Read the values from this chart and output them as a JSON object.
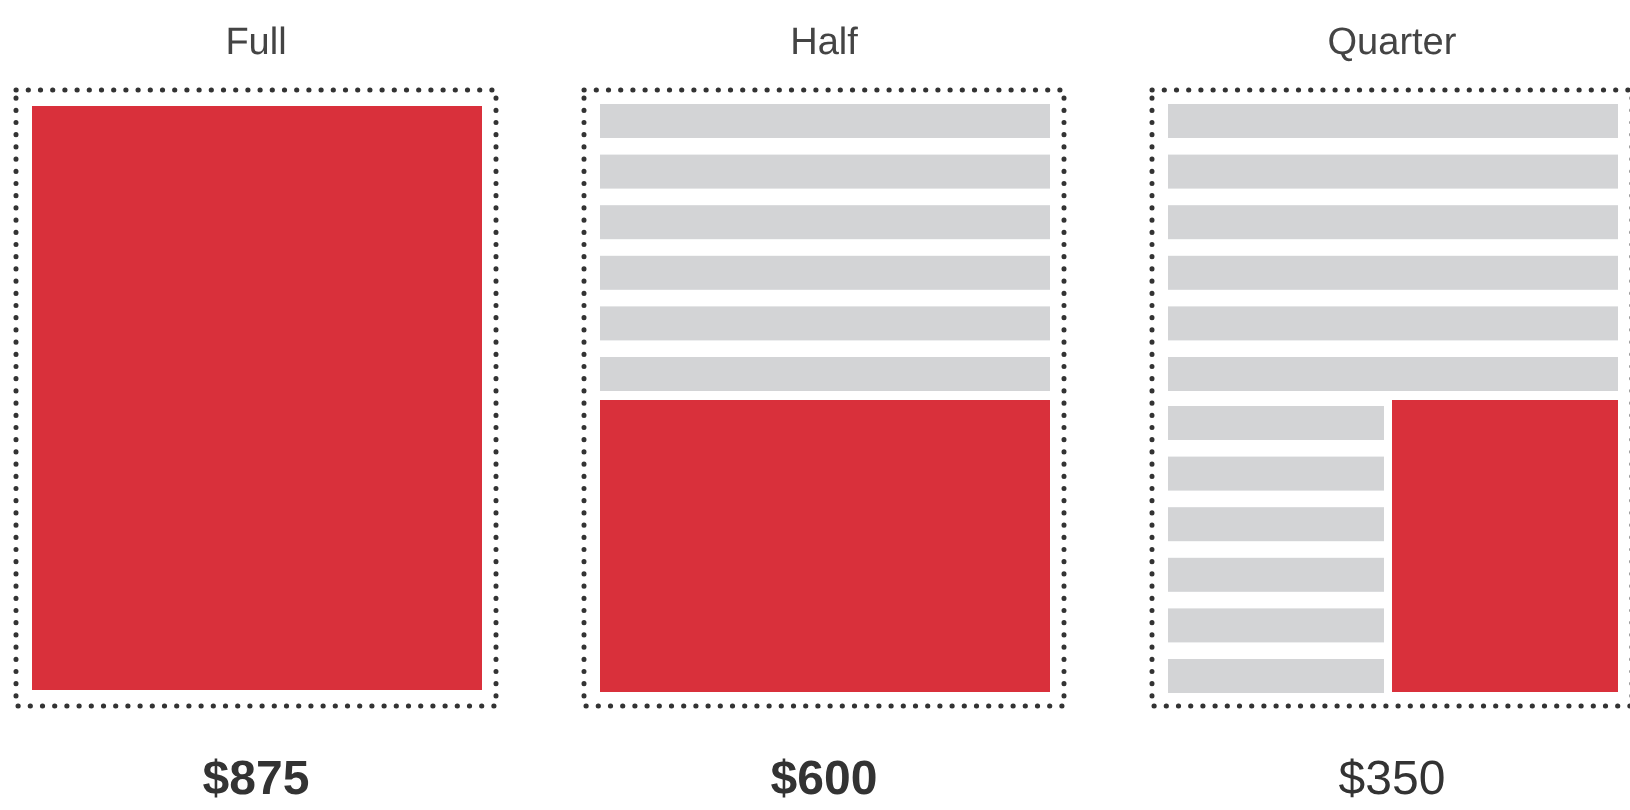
{
  "chart_data": {
    "type": "other",
    "categories": [
      "Full",
      "Half",
      "Quarter"
    ],
    "values": [
      875,
      600,
      350
    ],
    "value_labels": [
      "$875",
      "$600",
      "$350"
    ]
  }
}
